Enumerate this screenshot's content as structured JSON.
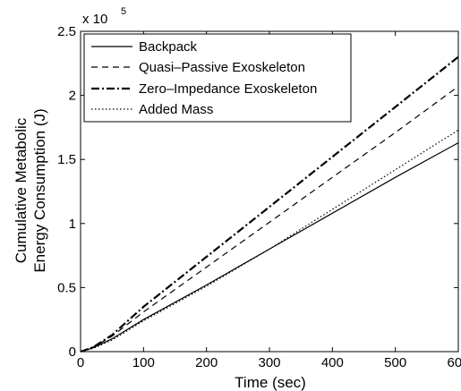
{
  "chart_data": {
    "type": "line",
    "title": "",
    "xlabel": "Time (sec)",
    "ylabel": [
      "Cumulative Metabolic",
      "Energy Consumption (J)"
    ],
    "xlim": [
      0,
      600
    ],
    "ylim": [
      0,
      250000
    ],
    "xticks": [
      0,
      100,
      200,
      300,
      400,
      500,
      600
    ],
    "yticks": [
      0,
      50000,
      100000,
      150000,
      200000,
      250000
    ],
    "xtick_labels": [
      "0",
      "100",
      "200",
      "300",
      "400",
      "500",
      "600"
    ],
    "ytick_labels": [
      "0",
      "0.5",
      "1",
      "1.5",
      "2",
      "2.5"
    ],
    "y_multiplier": {
      "base": "x 10",
      "exponent": "5"
    },
    "grid": false,
    "legend_position": "top-left",
    "series": [
      {
        "name": "Backpack",
        "style": "solid",
        "color": "#000000",
        "x": [
          0,
          20,
          50,
          100,
          200,
          300,
          400,
          500,
          600
        ],
        "y": [
          0,
          3000,
          10000,
          25000,
          52000,
          80000,
          108000,
          136000,
          163000
        ]
      },
      {
        "name": "Quasi–Passive Exoskeleton",
        "style": "dashed",
        "color": "#000000",
        "x": [
          0,
          20,
          50,
          100,
          200,
          300,
          400,
          500,
          600
        ],
        "y": [
          0,
          3500,
          12000,
          31000,
          66000,
          101000,
          136000,
          171000,
          207000
        ]
      },
      {
        "name": "Zero–Impedance Exoskeleton",
        "style": "dashdot",
        "color": "#000000",
        "x": [
          0,
          20,
          50,
          100,
          200,
          300,
          400,
          500,
          600
        ],
        "y": [
          0,
          3500,
          13000,
          35000,
          74000,
          113000,
          152000,
          191000,
          230000
        ]
      },
      {
        "name": "Added Mass",
        "style": "dotted",
        "color": "#000000",
        "x": [
          0,
          20,
          50,
          100,
          200,
          300,
          400,
          500,
          600
        ],
        "y": [
          0,
          2500,
          9000,
          24000,
          51000,
          80000,
          111000,
          142000,
          173000
        ]
      }
    ]
  }
}
